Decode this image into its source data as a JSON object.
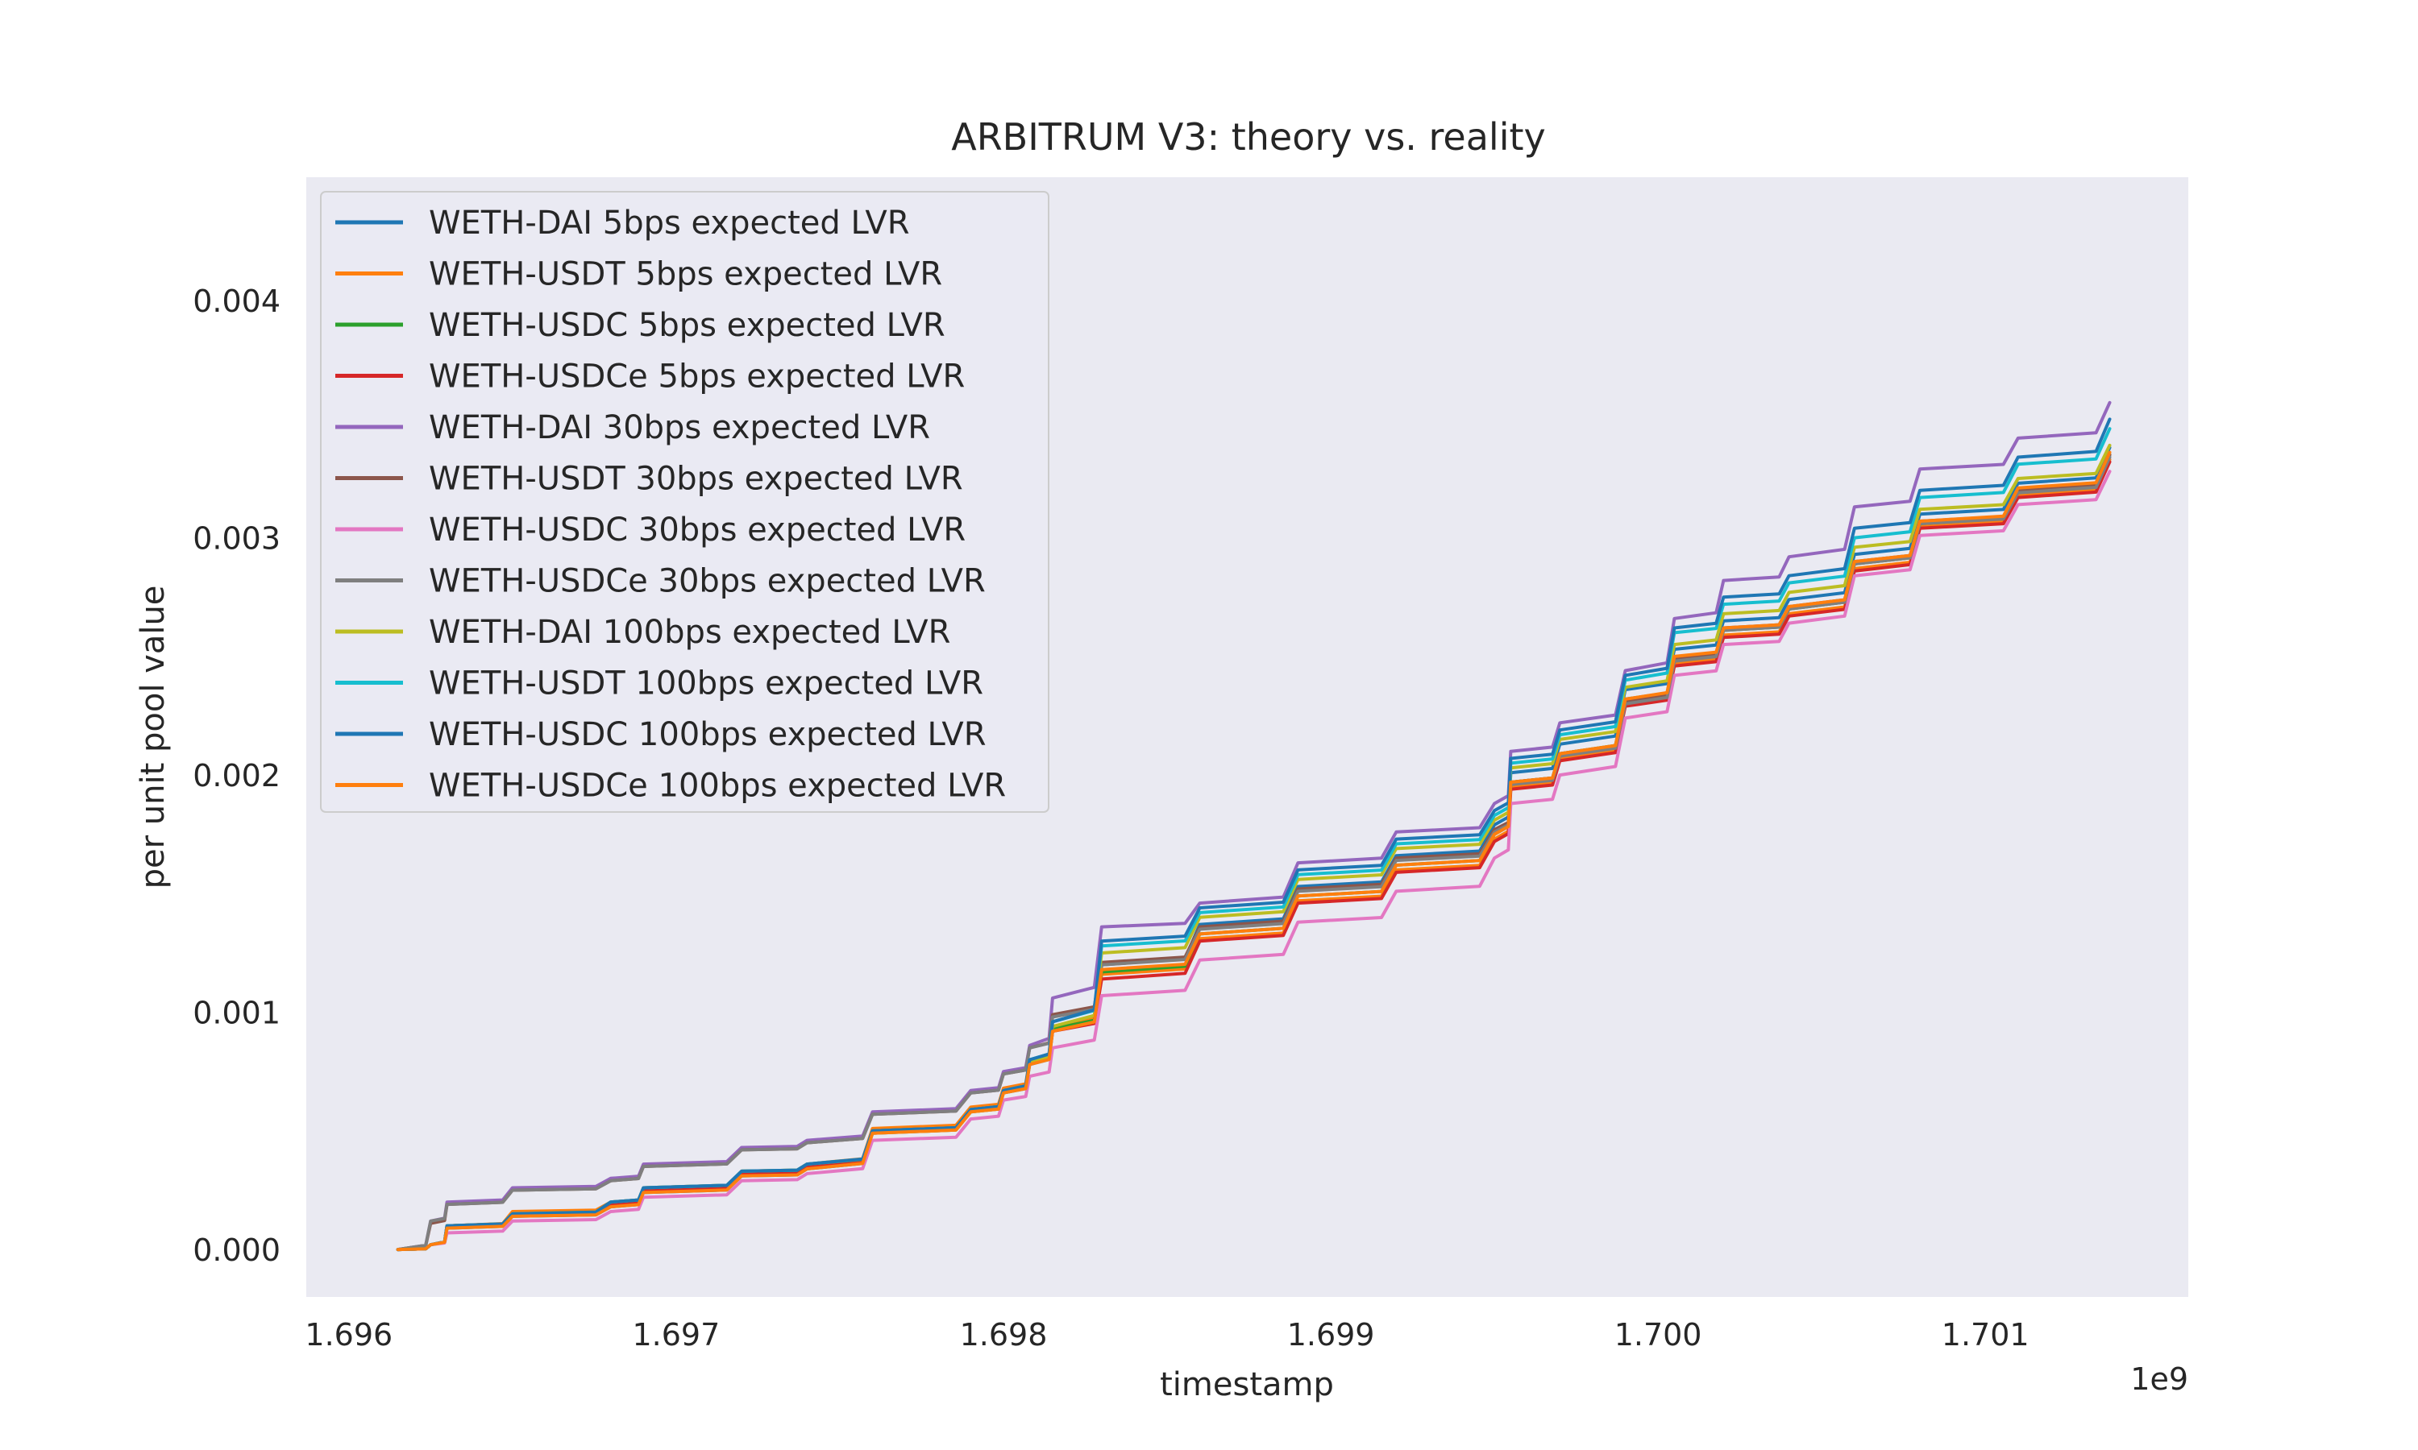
{
  "chart_data": {
    "type": "line",
    "title": "ARBITRUM V3: theory vs. reality",
    "xlabel": "timestamp",
    "ylabel": "per unit pool value",
    "x_offset_text": "1e9",
    "xlim": [
      1.69587,
      1.70162
    ],
    "ylim": [
      -0.0002,
      0.00452
    ],
    "xticks": [
      1.696,
      1.697,
      1.698,
      1.699,
      1.7,
      1.701
    ],
    "xtick_labels": [
      "1.696",
      "1.697",
      "1.698",
      "1.699",
      "1.700",
      "1.701"
    ],
    "yticks": [
      0.0,
      0.001,
      0.002,
      0.003,
      0.004
    ],
    "ytick_labels": [
      "0.000",
      "0.001",
      "0.002",
      "0.003",
      "0.004"
    ],
    "grid": false,
    "legend": "top-left",
    "x": [
      1.69615,
      1.69625,
      1.6963,
      1.6965,
      1.6968,
      1.6969,
      1.6972,
      1.6974,
      1.6976,
      1.6979,
      1.698,
      1.69808,
      1.69815,
      1.6983,
      1.6986,
      1.6989,
      1.6992,
      1.6995,
      1.69955,
      1.6997,
      1.6999,
      1.70005,
      1.7002,
      1.7004,
      1.7006,
      1.7008,
      1.7011,
      1.70138
    ],
    "series": [
      {
        "name": "WETH-DAI 5bps expected LVR",
        "color": "#1f77b4",
        "values": [
          0,
          2e-05,
          9e-05,
          0.00014,
          0.00018,
          0.00024,
          0.00031,
          0.00034,
          0.00049,
          0.00058,
          0.00066,
          0.00078,
          0.00092,
          0.0012,
          0.00137,
          0.00153,
          0.00166,
          0.00179,
          0.00201,
          0.00213,
          0.00236,
          0.00253,
          0.00265,
          0.00274,
          0.00293,
          0.0031,
          0.00323,
          0.00338
        ]
      },
      {
        "name": "WETH-USDT 5bps expected LVR",
        "color": "#ff7f0e",
        "values": [
          0,
          2e-05,
          0.0001,
          0.00016,
          0.0002,
          0.00026,
          0.00033,
          0.00036,
          0.00051,
          0.0006,
          0.00068,
          0.0008,
          0.00094,
          0.00116,
          0.00131,
          0.00147,
          0.0016,
          0.00173,
          0.00195,
          0.00207,
          0.0023,
          0.00247,
          0.00259,
          0.00268,
          0.00287,
          0.00305,
          0.00318,
          0.00333
        ]
      },
      {
        "name": "WETH-USDC 5bps expected LVR",
        "color": "#2ca02c",
        "values": [
          0,
          2e-05,
          0.0001,
          0.00015,
          0.00019,
          0.00025,
          0.00032,
          0.00035,
          0.0005,
          0.00059,
          0.00067,
          0.00079,
          0.00093,
          0.00117,
          0.00133,
          0.00149,
          0.00162,
          0.00175,
          0.00197,
          0.00209,
          0.00232,
          0.00249,
          0.00261,
          0.0027,
          0.00289,
          0.00306,
          0.0032,
          0.00335
        ]
      },
      {
        "name": "WETH-USDCe 5bps expected LVR",
        "color": "#d62728",
        "values": [
          0,
          2e-05,
          0.0001,
          0.00015,
          0.00019,
          0.00025,
          0.00032,
          0.00035,
          0.0005,
          0.00059,
          0.00067,
          0.00079,
          0.00092,
          0.00114,
          0.0013,
          0.00146,
          0.00159,
          0.00172,
          0.00194,
          0.00206,
          0.00229,
          0.00246,
          0.00258,
          0.00267,
          0.00286,
          0.00304,
          0.00317,
          0.00332
        ]
      },
      {
        "name": "WETH-DAI 30bps expected LVR",
        "color": "#9467bd",
        "values": [
          0,
          0.00012,
          0.0002,
          0.00026,
          0.0003,
          0.00036,
          0.00043,
          0.00046,
          0.00058,
          0.00067,
          0.00075,
          0.00086,
          0.00106,
          0.00136,
          0.00146,
          0.00163,
          0.00176,
          0.00188,
          0.0021,
          0.00222,
          0.00244,
          0.00266,
          0.00282,
          0.00292,
          0.00313,
          0.00329,
          0.00342,
          0.00357
        ]
      },
      {
        "name": "WETH-USDT 30bps expected LVR",
        "color": "#8c564b",
        "values": [
          0,
          0.00011,
          0.00019,
          0.00025,
          0.00029,
          0.00035,
          0.00042,
          0.00045,
          0.00057,
          0.00066,
          0.00074,
          0.00085,
          0.00099,
          0.00121,
          0.00136,
          0.00152,
          0.00165,
          0.00177,
          0.00197,
          0.00209,
          0.00231,
          0.00249,
          0.00262,
          0.00271,
          0.0029,
          0.00307,
          0.0032,
          0.00335
        ]
      },
      {
        "name": "WETH-USDC 30bps expected LVR",
        "color": "#e377c2",
        "values": [
          0,
          2e-05,
          7e-05,
          0.00012,
          0.00016,
          0.00022,
          0.00029,
          0.00032,
          0.00046,
          0.00055,
          0.00063,
          0.00073,
          0.00085,
          0.00107,
          0.00122,
          0.00138,
          0.00151,
          0.00165,
          0.00188,
          0.002,
          0.00224,
          0.00242,
          0.00255,
          0.00264,
          0.00284,
          0.00301,
          0.00314,
          0.00328
        ]
      },
      {
        "name": "WETH-USDCe 30bps expected LVR",
        "color": "#7f7f7f",
        "values": [
          0,
          0.00012,
          0.00019,
          0.00025,
          0.00029,
          0.00035,
          0.00042,
          0.00045,
          0.00057,
          0.00066,
          0.00074,
          0.00085,
          0.00098,
          0.0012,
          0.00135,
          0.00151,
          0.00164,
          0.00176,
          0.00196,
          0.00208,
          0.0023,
          0.00248,
          0.00261,
          0.0027,
          0.00289,
          0.00306,
          0.00319,
          0.00334
        ]
      },
      {
        "name": "WETH-DAI 100bps expected LVR",
        "color": "#bcbd22",
        "values": [
          0,
          2e-05,
          0.0001,
          0.00015,
          0.0002,
          0.00026,
          0.00033,
          0.00036,
          0.00049,
          0.00058,
          0.00066,
          0.00079,
          0.00094,
          0.00125,
          0.0014,
          0.00156,
          0.00169,
          0.00181,
          0.00203,
          0.00215,
          0.00237,
          0.00255,
          0.00268,
          0.00277,
          0.00296,
          0.00312,
          0.00325,
          0.00339
        ]
      },
      {
        "name": "WETH-USDT 100bps expected LVR",
        "color": "#17becf",
        "values": [
          0,
          2e-05,
          0.0001,
          0.00015,
          0.0002,
          0.00026,
          0.00033,
          0.00036,
          0.0005,
          0.00059,
          0.00067,
          0.0008,
          0.00096,
          0.00128,
          0.00142,
          0.00158,
          0.00171,
          0.00183,
          0.00205,
          0.00217,
          0.0024,
          0.0026,
          0.00272,
          0.00281,
          0.003,
          0.00317,
          0.00331,
          0.00346
        ]
      },
      {
        "name": "WETH-USDC 100bps expected LVR",
        "color": "#1f77b4",
        "values": [
          0,
          2e-05,
          0.0001,
          0.00015,
          0.0002,
          0.00026,
          0.00033,
          0.00036,
          0.0005,
          0.00059,
          0.00067,
          0.0008,
          0.00096,
          0.0013,
          0.00144,
          0.0016,
          0.00173,
          0.00185,
          0.00207,
          0.00219,
          0.00242,
          0.00262,
          0.00275,
          0.00284,
          0.00304,
          0.0032,
          0.00334,
          0.0035
        ]
      },
      {
        "name": "WETH-USDCe 100bps expected LVR",
        "color": "#ff7f0e",
        "values": [
          0,
          2e-05,
          9e-05,
          0.00014,
          0.00018,
          0.00024,
          0.00031,
          0.00034,
          0.00049,
          0.00058,
          0.00066,
          0.00078,
          0.00092,
          0.00118,
          0.00133,
          0.00149,
          0.00162,
          0.00175,
          0.00197,
          0.00209,
          0.00232,
          0.0025,
          0.00262,
          0.00271,
          0.0029,
          0.00307,
          0.00321,
          0.00336
        ]
      }
    ]
  }
}
